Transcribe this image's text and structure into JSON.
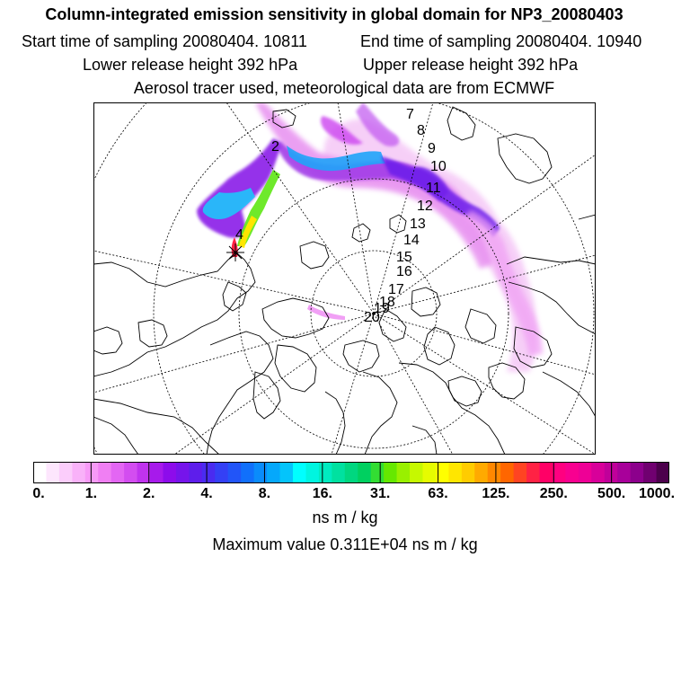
{
  "header": {
    "title": "Column-integrated emission sensitivity in global domain for NP3_20080403",
    "start_label": "Start time of sampling 20080404. 10811",
    "end_label": "End time of sampling 20080404. 10940",
    "lower_label": "Lower release height  392 hPa",
    "upper_label": "Upper release height  392 hPa",
    "info": "Aerosol tracer used, meteorological data are from ECMWF"
  },
  "map": {
    "day_labels": [
      "2",
      "4",
      "7",
      "8",
      "9",
      "10",
      "11",
      "12",
      "13",
      "14",
      "15",
      "16",
      "17",
      "18",
      "19",
      "20"
    ]
  },
  "colorbar": {
    "colors": [
      "#ffffff",
      "#fde6fd",
      "#fbcdfb",
      "#f9b2f9",
      "#f79af7",
      "#f07ff3",
      "#e366f3",
      "#d34df0",
      "#c033ee",
      "#a71aeb",
      "#8d0ceb",
      "#7614eb",
      "#5e1eeb",
      "#4a2bf0",
      "#3440f5",
      "#2255f8",
      "#1170fb",
      "#0a8cfb",
      "#05a8fb",
      "#04c4fb",
      "#00ffff",
      "#00f5e0",
      "#00ebc0",
      "#00e1a0",
      "#00d780",
      "#00d060",
      "#33dd33",
      "#66e800",
      "#99f000",
      "#c6f800",
      "#e6fc00",
      "#ffff00",
      "#ffe600",
      "#ffcc00",
      "#ffaa00",
      "#ff8800",
      "#ff6600",
      "#ff4422",
      "#ff2244",
      "#ff0066",
      "#ff0080",
      "#f80090",
      "#ee0096",
      "#d8009a",
      "#c0009a",
      "#a8009a",
      "#8c008c",
      "#700070",
      "#4c004c"
    ],
    "tick_labels": [
      "0.",
      "1.",
      "2.",
      "4.",
      "8.",
      "16.",
      "31.",
      "63.",
      "125.",
      "250.",
      "500.",
      "1000."
    ],
    "unit": "ns m / kg"
  },
  "footer": {
    "max_value": "Maximum value  0.311E+04 ns m / kg"
  }
}
